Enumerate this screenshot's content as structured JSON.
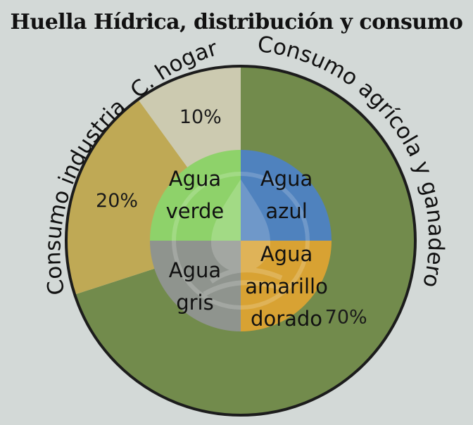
{
  "title": "Huella Hídrica, distribución y consumo",
  "chart_data": [
    {
      "type": "pie",
      "categories": [
        "Consumo agrícola y ganadero",
        "Consumo industria",
        "C. hogar"
      ],
      "values": [
        70,
        20,
        10
      ],
      "value_labels": [
        "70%",
        "20%",
        "10%"
      ],
      "colors": [
        "#728b4c",
        "#bfa955",
        "#cccab0"
      ]
    },
    {
      "type": "pie",
      "categories": [
        "Agua azul",
        "Agua amarillo dorado",
        "Agua gris",
        "Agua verde"
      ],
      "values": [
        25,
        25,
        25,
        25
      ],
      "labels": [
        [
          "Agua",
          "azul"
        ],
        [
          "Agua",
          "amarillo",
          "dorado"
        ],
        [
          "Agua",
          "gris"
        ],
        [
          "Agua",
          "verde"
        ]
      ],
      "colors": [
        "#4f82be",
        "#d8a233",
        "#8f948e",
        "#8ed26a"
      ]
    }
  ]
}
